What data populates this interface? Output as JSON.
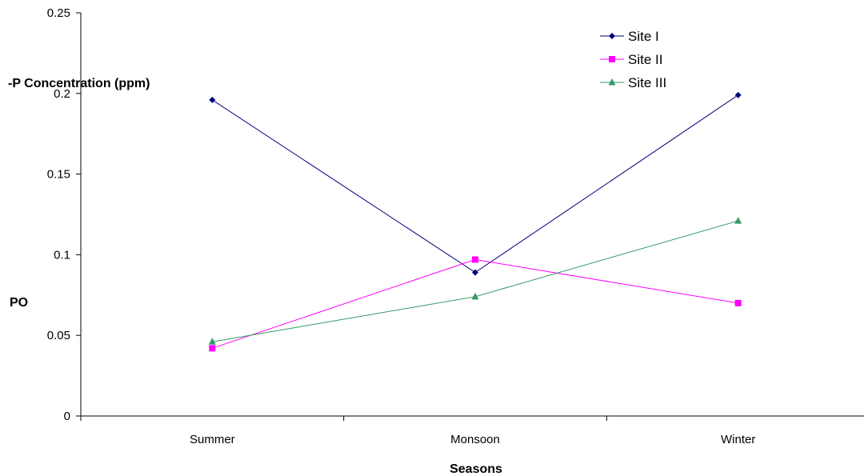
{
  "chart_data": {
    "type": "line",
    "categories": [
      "Summer",
      "Monsoon",
      "Winter"
    ],
    "series": [
      {
        "name": "Site I",
        "values": [
          0.196,
          0.089,
          0.199
        ],
        "color": "#000080",
        "marker": "diamond"
      },
      {
        "name": "Site II",
        "values": [
          0.042,
          0.097,
          0.07
        ],
        "color": "#FF00FF",
        "marker": "square"
      },
      {
        "name": "Site III",
        "values": [
          0.046,
          0.074,
          0.121
        ],
        "color": "#339966",
        "marker": "triangle"
      }
    ],
    "xlabel": "Seasons",
    "ylabel": "-P Concentration (ppm)",
    "ylabel_fragment": "PO",
    "ylim": [
      0,
      0.25
    ],
    "yticks": [
      "0",
      "0.05",
      "0.1",
      "0.15",
      "0.2",
      "0.25"
    ],
    "legend": "top-right",
    "grid": false
  }
}
